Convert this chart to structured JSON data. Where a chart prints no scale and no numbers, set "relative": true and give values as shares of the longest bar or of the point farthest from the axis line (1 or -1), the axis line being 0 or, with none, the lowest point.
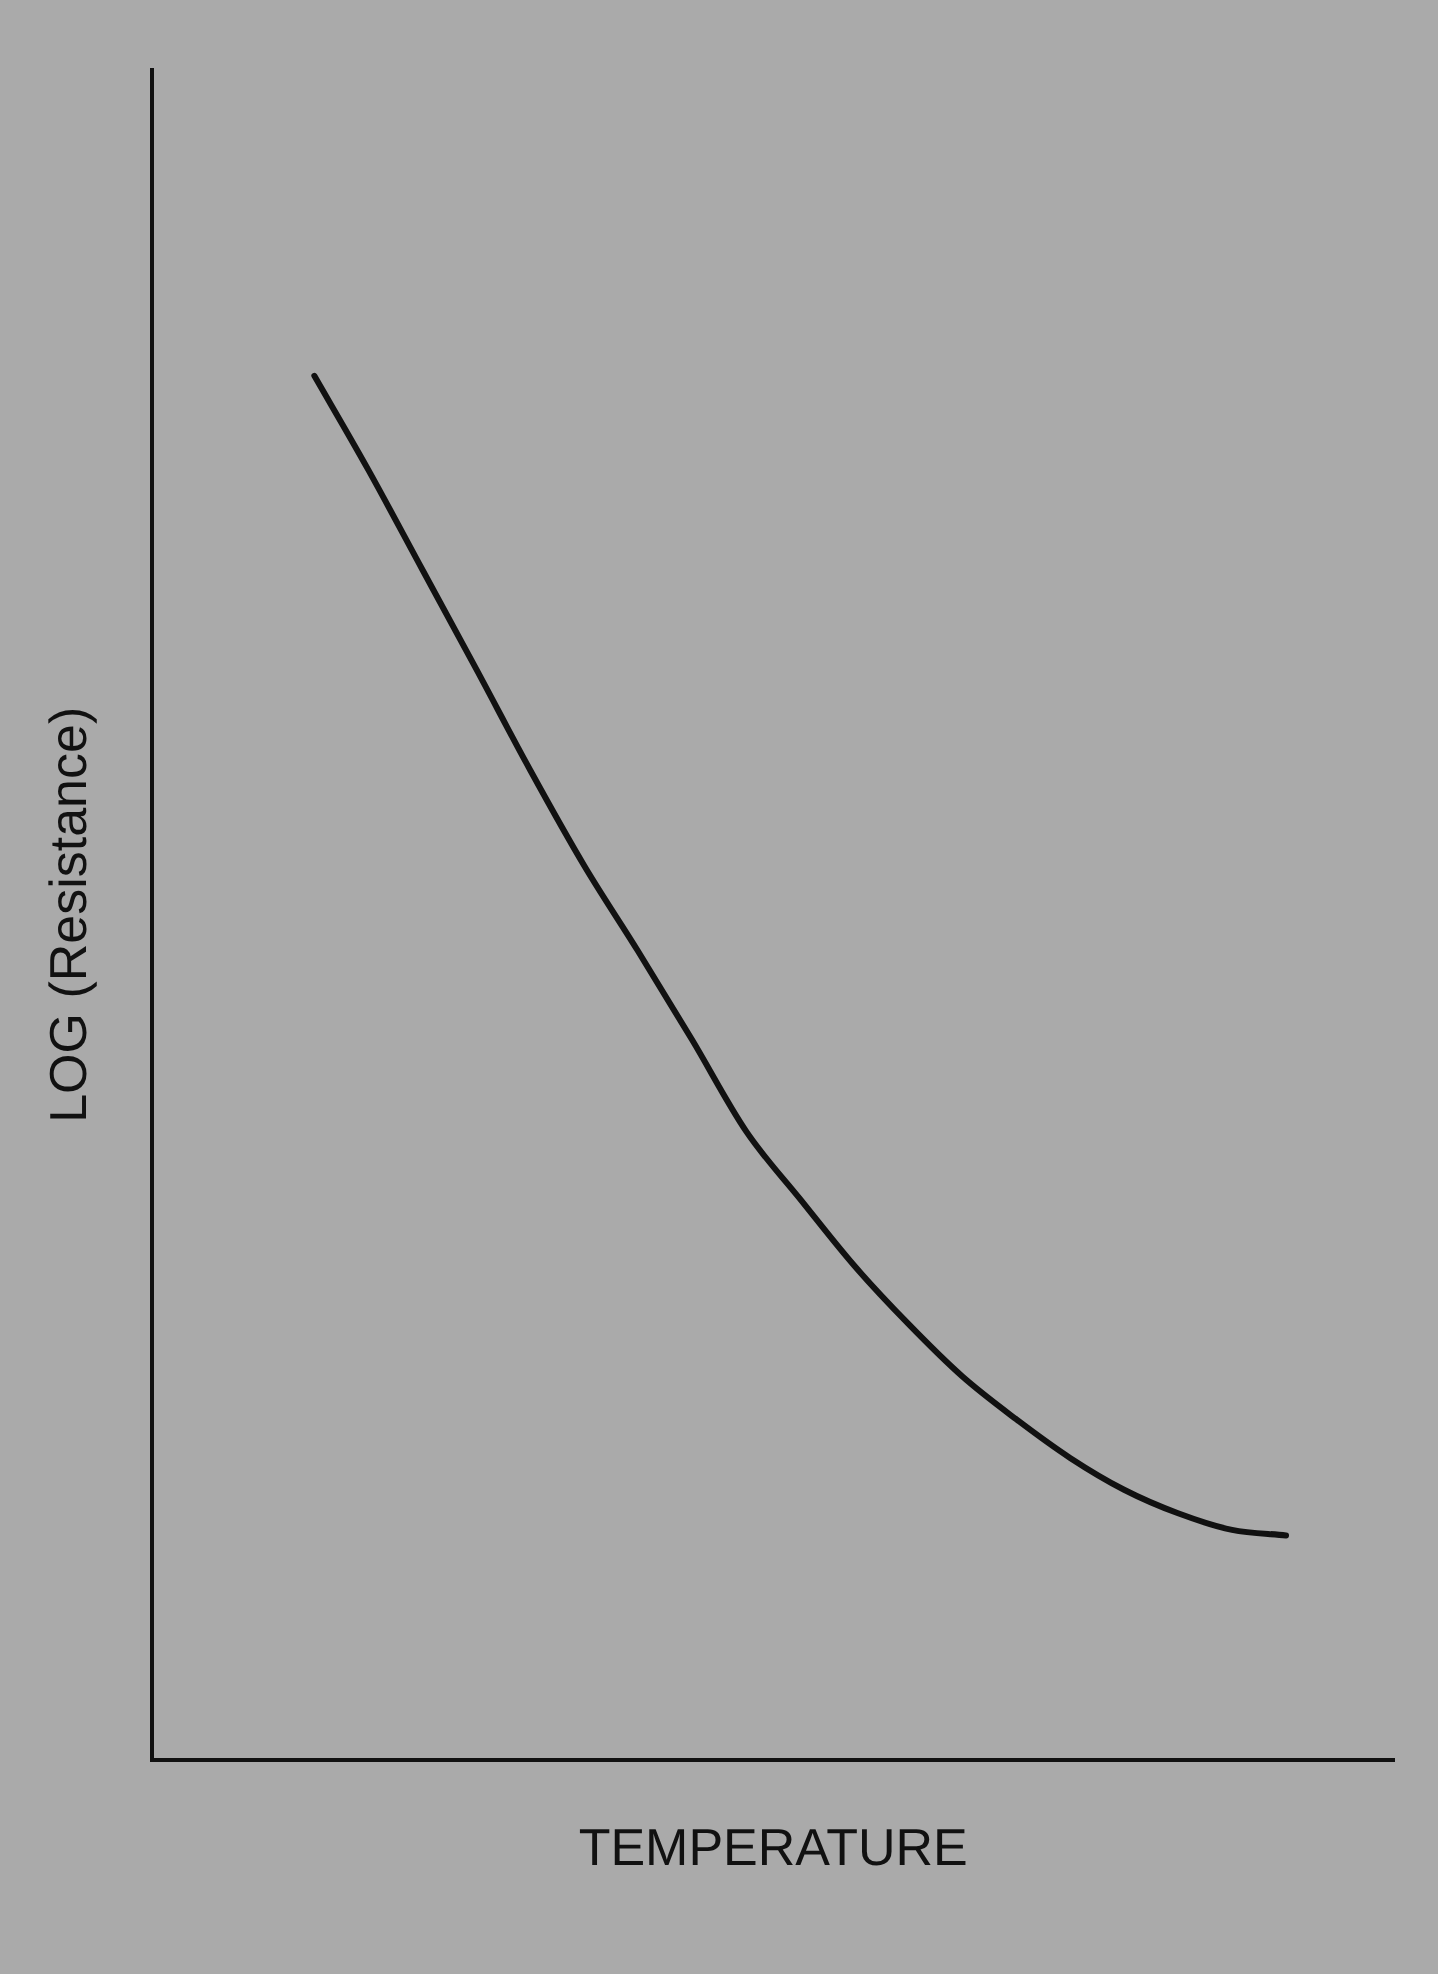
{
  "chart_data": {
    "type": "line",
    "xlabel": "TEMPERATURE",
    "ylabel": "LOG (Resistance)",
    "relative": true,
    "tick_labels": false,
    "grid": false,
    "legend": false,
    "marker": "none",
    "line_style": "solid",
    "categories": [
      null,
      null,
      null,
      null,
      null,
      null,
      null,
      null,
      null,
      null,
      null,
      null,
      null,
      null,
      null,
      null,
      null,
      null,
      null,
      null,
      null,
      null,
      null,
      null
    ],
    "series": [
      {
        "color": "#111111",
        "values": [
          null,
          null,
          null,
          1,
          0.932,
          0.86,
          0.788,
          0.715,
          0.646,
          0.584,
          0.52,
          0.454,
          0.405,
          0.357,
          0.315,
          0.277,
          0.246,
          0.218,
          0.195,
          0.178,
          0.166,
          0.162,
          null,
          null
        ]
      }
    ]
  }
}
